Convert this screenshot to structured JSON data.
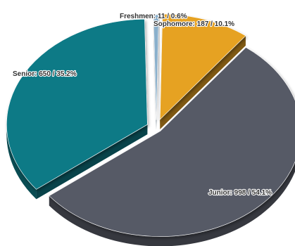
{
  "chart_data": {
    "type": "pie",
    "style": "3d-exploded",
    "slices": [
      {
        "category": "Freshmen",
        "value": 11,
        "percent": "0.6%",
        "label": "Freshmen: 11 / 0.6%",
        "color": "#8ab0cc"
      },
      {
        "category": "Sophomore",
        "value": 187,
        "percent": "10.1%",
        "label": "Sophomore: 187 / 10.1%",
        "color": "#e6a222"
      },
      {
        "category": "Junior",
        "value": 998,
        "percent": "54.1%",
        "label": "Junior: 998 / 54.1%",
        "color": "#575a66"
      },
      {
        "category": "Senior",
        "value": 650,
        "percent": "35.2%",
        "label": "Senior: 650 / 35.2%",
        "color": "#0f7a86"
      }
    ]
  }
}
